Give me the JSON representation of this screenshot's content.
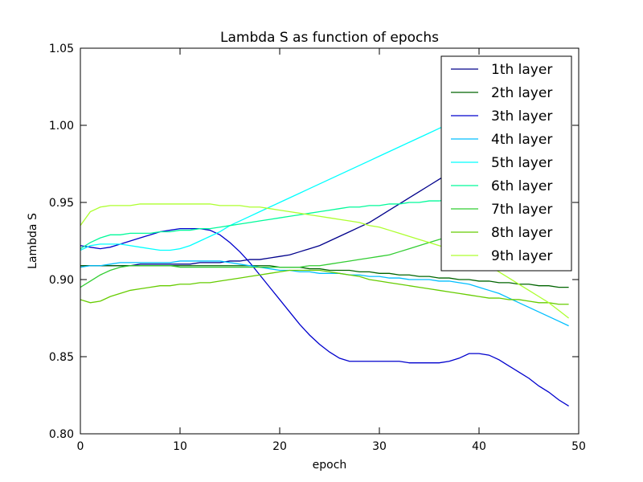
{
  "chart_data": {
    "type": "line",
    "title": "Lambda S as function of epochs",
    "xlabel": "epoch",
    "ylabel": "Lambda S",
    "xlim": [
      0,
      50
    ],
    "ylim": [
      0.8,
      1.05
    ],
    "x_ticks": [
      "0",
      "10",
      "20",
      "30",
      "40",
      "50"
    ],
    "y_ticks": [
      "0.80",
      "0.85",
      "0.90",
      "0.95",
      "1.00",
      "1.05"
    ],
    "grid": false,
    "legend_position": "top-right",
    "x": [
      0,
      1,
      2,
      3,
      4,
      5,
      6,
      7,
      8,
      9,
      10,
      11,
      12,
      13,
      14,
      15,
      16,
      17,
      18,
      19,
      20,
      21,
      22,
      23,
      24,
      25,
      26,
      27,
      28,
      29,
      30,
      31,
      32,
      33,
      34,
      35,
      36,
      37,
      38,
      39,
      40,
      41,
      42,
      43,
      44,
      45,
      46,
      47,
      48,
      49
    ],
    "series": [
      {
        "name": "1th layer",
        "color": "#00008b",
        "values": [
          0.909,
          0.909,
          0.909,
          0.909,
          0.909,
          0.909,
          0.91,
          0.91,
          0.91,
          0.91,
          0.91,
          0.91,
          0.911,
          0.911,
          0.911,
          0.912,
          0.912,
          0.913,
          0.913,
          0.914,
          0.915,
          0.916,
          0.918,
          0.92,
          0.922,
          0.925,
          0.928,
          0.931,
          0.934,
          0.937,
          0.941,
          0.945,
          0.949,
          0.953,
          0.957,
          0.961,
          0.965,
          0.969,
          0.973,
          0.977,
          0.981,
          0.985,
          0.989,
          0.993,
          0.997,
          1.001,
          1.005,
          1.009,
          1.013,
          1.017
        ]
      },
      {
        "name": "2th layer",
        "color": "#006400",
        "values": [
          0.909,
          0.909,
          0.909,
          0.909,
          0.909,
          0.909,
          0.909,
          0.909,
          0.909,
          0.909,
          0.909,
          0.909,
          0.909,
          0.909,
          0.909,
          0.909,
          0.909,
          0.909,
          0.909,
          0.909,
          0.908,
          0.908,
          0.908,
          0.907,
          0.907,
          0.906,
          0.906,
          0.906,
          0.905,
          0.905,
          0.904,
          0.904,
          0.903,
          0.903,
          0.902,
          0.902,
          0.901,
          0.901,
          0.9,
          0.9,
          0.899,
          0.899,
          0.898,
          0.898,
          0.897,
          0.897,
          0.896,
          0.896,
          0.895,
          0.895
        ]
      },
      {
        "name": "3th layer",
        "color": "#0000cd",
        "values": [
          0.922,
          0.921,
          0.92,
          0.921,
          0.923,
          0.925,
          0.927,
          0.929,
          0.931,
          0.932,
          0.933,
          0.933,
          0.933,
          0.932,
          0.929,
          0.924,
          0.918,
          0.911,
          0.903,
          0.895,
          0.887,
          0.879,
          0.871,
          0.864,
          0.858,
          0.853,
          0.849,
          0.847,
          0.847,
          0.847,
          0.847,
          0.847,
          0.847,
          0.846,
          0.846,
          0.846,
          0.846,
          0.847,
          0.849,
          0.852,
          0.852,
          0.851,
          0.848,
          0.844,
          0.84,
          0.836,
          0.831,
          0.827,
          0.822,
          0.818
        ]
      },
      {
        "name": "4th layer",
        "color": "#00bfff",
        "values": [
          0.908,
          0.909,
          0.909,
          0.91,
          0.911,
          0.911,
          0.911,
          0.911,
          0.911,
          0.911,
          0.912,
          0.912,
          0.912,
          0.912,
          0.912,
          0.911,
          0.91,
          0.909,
          0.908,
          0.907,
          0.906,
          0.906,
          0.905,
          0.905,
          0.904,
          0.904,
          0.904,
          0.903,
          0.903,
          0.902,
          0.902,
          0.901,
          0.901,
          0.9,
          0.9,
          0.9,
          0.899,
          0.899,
          0.898,
          0.897,
          0.895,
          0.893,
          0.891,
          0.888,
          0.885,
          0.882,
          0.879,
          0.876,
          0.873,
          0.87
        ]
      },
      {
        "name": "5th layer",
        "color": "#00ffff",
        "values": [
          0.919,
          0.922,
          0.923,
          0.923,
          0.923,
          0.922,
          0.921,
          0.92,
          0.919,
          0.919,
          0.92,
          0.922,
          0.925,
          0.928,
          0.931,
          0.935,
          0.938,
          0.941,
          0.944,
          0.947,
          0.95,
          0.953,
          0.956,
          0.959,
          0.962,
          0.965,
          0.968,
          0.971,
          0.974,
          0.977,
          0.98,
          0.983,
          0.986,
          0.989,
          0.992,
          0.995,
          0.998,
          1.001,
          1.004,
          1.007,
          1.01,
          1.013,
          1.016,
          1.019,
          1.022,
          1.025,
          1.028,
          1.031,
          1.034,
          1.037
        ]
      },
      {
        "name": "6th layer",
        "color": "#00fa9a",
        "values": [
          0.92,
          0.924,
          0.927,
          0.929,
          0.929,
          0.93,
          0.93,
          0.93,
          0.931,
          0.931,
          0.932,
          0.932,
          0.933,
          0.933,
          0.934,
          0.935,
          0.936,
          0.937,
          0.938,
          0.939,
          0.94,
          0.941,
          0.942,
          0.943,
          0.944,
          0.945,
          0.946,
          0.947,
          0.947,
          0.948,
          0.948,
          0.949,
          0.949,
          0.95,
          0.95,
          0.951,
          0.951,
          0.952,
          0.952,
          0.953,
          0.953,
          0.954,
          0.954,
          0.955,
          0.955,
          0.956,
          0.956,
          0.957,
          0.957,
          0.958
        ]
      },
      {
        "name": "7th layer",
        "color": "#32cd32",
        "values": [
          0.895,
          0.899,
          0.903,
          0.906,
          0.908,
          0.909,
          0.909,
          0.909,
          0.909,
          0.909,
          0.908,
          0.908,
          0.908,
          0.908,
          0.908,
          0.908,
          0.908,
          0.908,
          0.908,
          0.908,
          0.908,
          0.908,
          0.908,
          0.909,
          0.909,
          0.91,
          0.911,
          0.912,
          0.913,
          0.914,
          0.915,
          0.916,
          0.918,
          0.92,
          0.922,
          0.924,
          0.926,
          0.928,
          0.93,
          0.932,
          0.934,
          0.936,
          0.938,
          0.94,
          0.942,
          0.944,
          0.946,
          0.948,
          0.95,
          0.952
        ]
      },
      {
        "name": "8th layer",
        "color": "#66cc00",
        "values": [
          0.887,
          0.885,
          0.886,
          0.889,
          0.891,
          0.893,
          0.894,
          0.895,
          0.896,
          0.896,
          0.897,
          0.897,
          0.898,
          0.898,
          0.899,
          0.9,
          0.901,
          0.902,
          0.903,
          0.904,
          0.905,
          0.906,
          0.906,
          0.906,
          0.906,
          0.905,
          0.904,
          0.903,
          0.902,
          0.9,
          0.899,
          0.898,
          0.897,
          0.896,
          0.895,
          0.894,
          0.893,
          0.892,
          0.891,
          0.89,
          0.889,
          0.888,
          0.888,
          0.887,
          0.887,
          0.886,
          0.885,
          0.885,
          0.884,
          0.884
        ]
      },
      {
        "name": "9th layer",
        "color": "#adff2f",
        "values": [
          0.935,
          0.944,
          0.947,
          0.948,
          0.948,
          0.948,
          0.949,
          0.949,
          0.949,
          0.949,
          0.949,
          0.949,
          0.949,
          0.949,
          0.948,
          0.948,
          0.948,
          0.947,
          0.947,
          0.946,
          0.945,
          0.944,
          0.943,
          0.942,
          0.941,
          0.94,
          0.939,
          0.938,
          0.937,
          0.935,
          0.934,
          0.932,
          0.93,
          0.928,
          0.926,
          0.924,
          0.922,
          0.92,
          0.918,
          0.915,
          0.912,
          0.909,
          0.905,
          0.901,
          0.897,
          0.893,
          0.889,
          0.885,
          0.88,
          0.875
        ]
      }
    ]
  }
}
